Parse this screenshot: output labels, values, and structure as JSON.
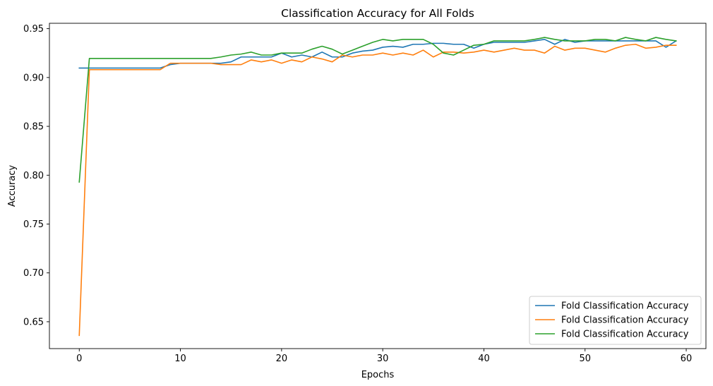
{
  "chart_data": {
    "type": "line",
    "title": "Classification Accuracy for All Folds",
    "xlabel": "Epochs",
    "ylabel": "Accuracy",
    "xlim": [
      -2.95,
      61.95
    ],
    "ylim": [
      0.6225,
      0.9555
    ],
    "xticks": [
      0,
      10,
      20,
      30,
      40,
      50,
      60
    ],
    "xtick_labels": [
      "0",
      "10",
      "20",
      "30",
      "40",
      "50",
      "60"
    ],
    "yticks": [
      0.65,
      0.7,
      0.75,
      0.8,
      0.85,
      0.9,
      0.95
    ],
    "ytick_labels": [
      "0.65",
      "0.70",
      "0.75",
      "0.80",
      "0.85",
      "0.90",
      "0.95"
    ],
    "grid": false,
    "legend_position": "lower-right",
    "x": [
      0,
      1,
      2,
      3,
      4,
      5,
      6,
      7,
      8,
      9,
      10,
      11,
      12,
      13,
      14,
      15,
      16,
      17,
      18,
      19,
      20,
      21,
      22,
      23,
      24,
      25,
      26,
      27,
      28,
      29,
      30,
      31,
      32,
      33,
      34,
      35,
      36,
      37,
      38,
      39,
      40,
      41,
      42,
      43,
      44,
      45,
      46,
      47,
      48,
      49,
      50,
      51,
      52,
      53,
      54,
      55,
      56,
      57,
      58,
      59
    ],
    "series": [
      {
        "name": "Fold Classification Accuracy",
        "color": "#1f77b4",
        "values": [
          0.9097,
          0.9097,
          0.9097,
          0.9097,
          0.9097,
          0.9097,
          0.9097,
          0.9097,
          0.9097,
          0.9132,
          0.9146,
          0.9146,
          0.9146,
          0.9146,
          0.9146,
          0.916,
          0.921,
          0.921,
          0.921,
          0.921,
          0.925,
          0.921,
          0.923,
          0.921,
          0.926,
          0.921,
          0.921,
          0.925,
          0.927,
          0.928,
          0.931,
          0.932,
          0.931,
          0.934,
          0.934,
          0.935,
          0.935,
          0.934,
          0.934,
          0.93,
          0.934,
          0.936,
          0.936,
          0.936,
          0.936,
          0.9375,
          0.939,
          0.934,
          0.939,
          0.936,
          0.9375,
          0.9375,
          0.9375,
          0.9375,
          0.9375,
          0.9375,
          0.9375,
          0.9375,
          0.931,
          0.9375
        ]
      },
      {
        "name": "Fold Classification Accuracy",
        "color": "#ff7f0e",
        "values": [
          0.636,
          0.908,
          0.908,
          0.908,
          0.908,
          0.908,
          0.908,
          0.908,
          0.908,
          0.9146,
          0.9146,
          0.9146,
          0.9146,
          0.9146,
          0.9132,
          0.9132,
          0.9132,
          0.918,
          0.916,
          0.918,
          0.9146,
          0.918,
          0.916,
          0.921,
          0.919,
          0.916,
          0.923,
          0.921,
          0.923,
          0.923,
          0.925,
          0.923,
          0.925,
          0.923,
          0.928,
          0.921,
          0.926,
          0.926,
          0.925,
          0.926,
          0.928,
          0.926,
          0.928,
          0.93,
          0.928,
          0.928,
          0.925,
          0.932,
          0.928,
          0.93,
          0.93,
          0.928,
          0.926,
          0.93,
          0.933,
          0.934,
          0.93,
          0.931,
          0.933,
          0.933
        ]
      },
      {
        "name": "Fold Classification Accuracy",
        "color": "#2ca02c",
        "values": [
          0.793,
          0.9195,
          0.9195,
          0.9195,
          0.9195,
          0.9195,
          0.9195,
          0.9195,
          0.9195,
          0.9195,
          0.9195,
          0.9195,
          0.9195,
          0.9195,
          0.921,
          0.923,
          0.924,
          0.926,
          0.923,
          0.923,
          0.925,
          0.925,
          0.925,
          0.929,
          0.932,
          0.929,
          0.924,
          0.928,
          0.932,
          0.936,
          0.939,
          0.9375,
          0.939,
          0.939,
          0.939,
          0.934,
          0.925,
          0.923,
          0.928,
          0.933,
          0.934,
          0.9375,
          0.9375,
          0.9375,
          0.9375,
          0.939,
          0.941,
          0.939,
          0.9375,
          0.9375,
          0.9375,
          0.939,
          0.939,
          0.9375,
          0.941,
          0.939,
          0.9375,
          0.941,
          0.939,
          0.9375
        ]
      }
    ]
  }
}
